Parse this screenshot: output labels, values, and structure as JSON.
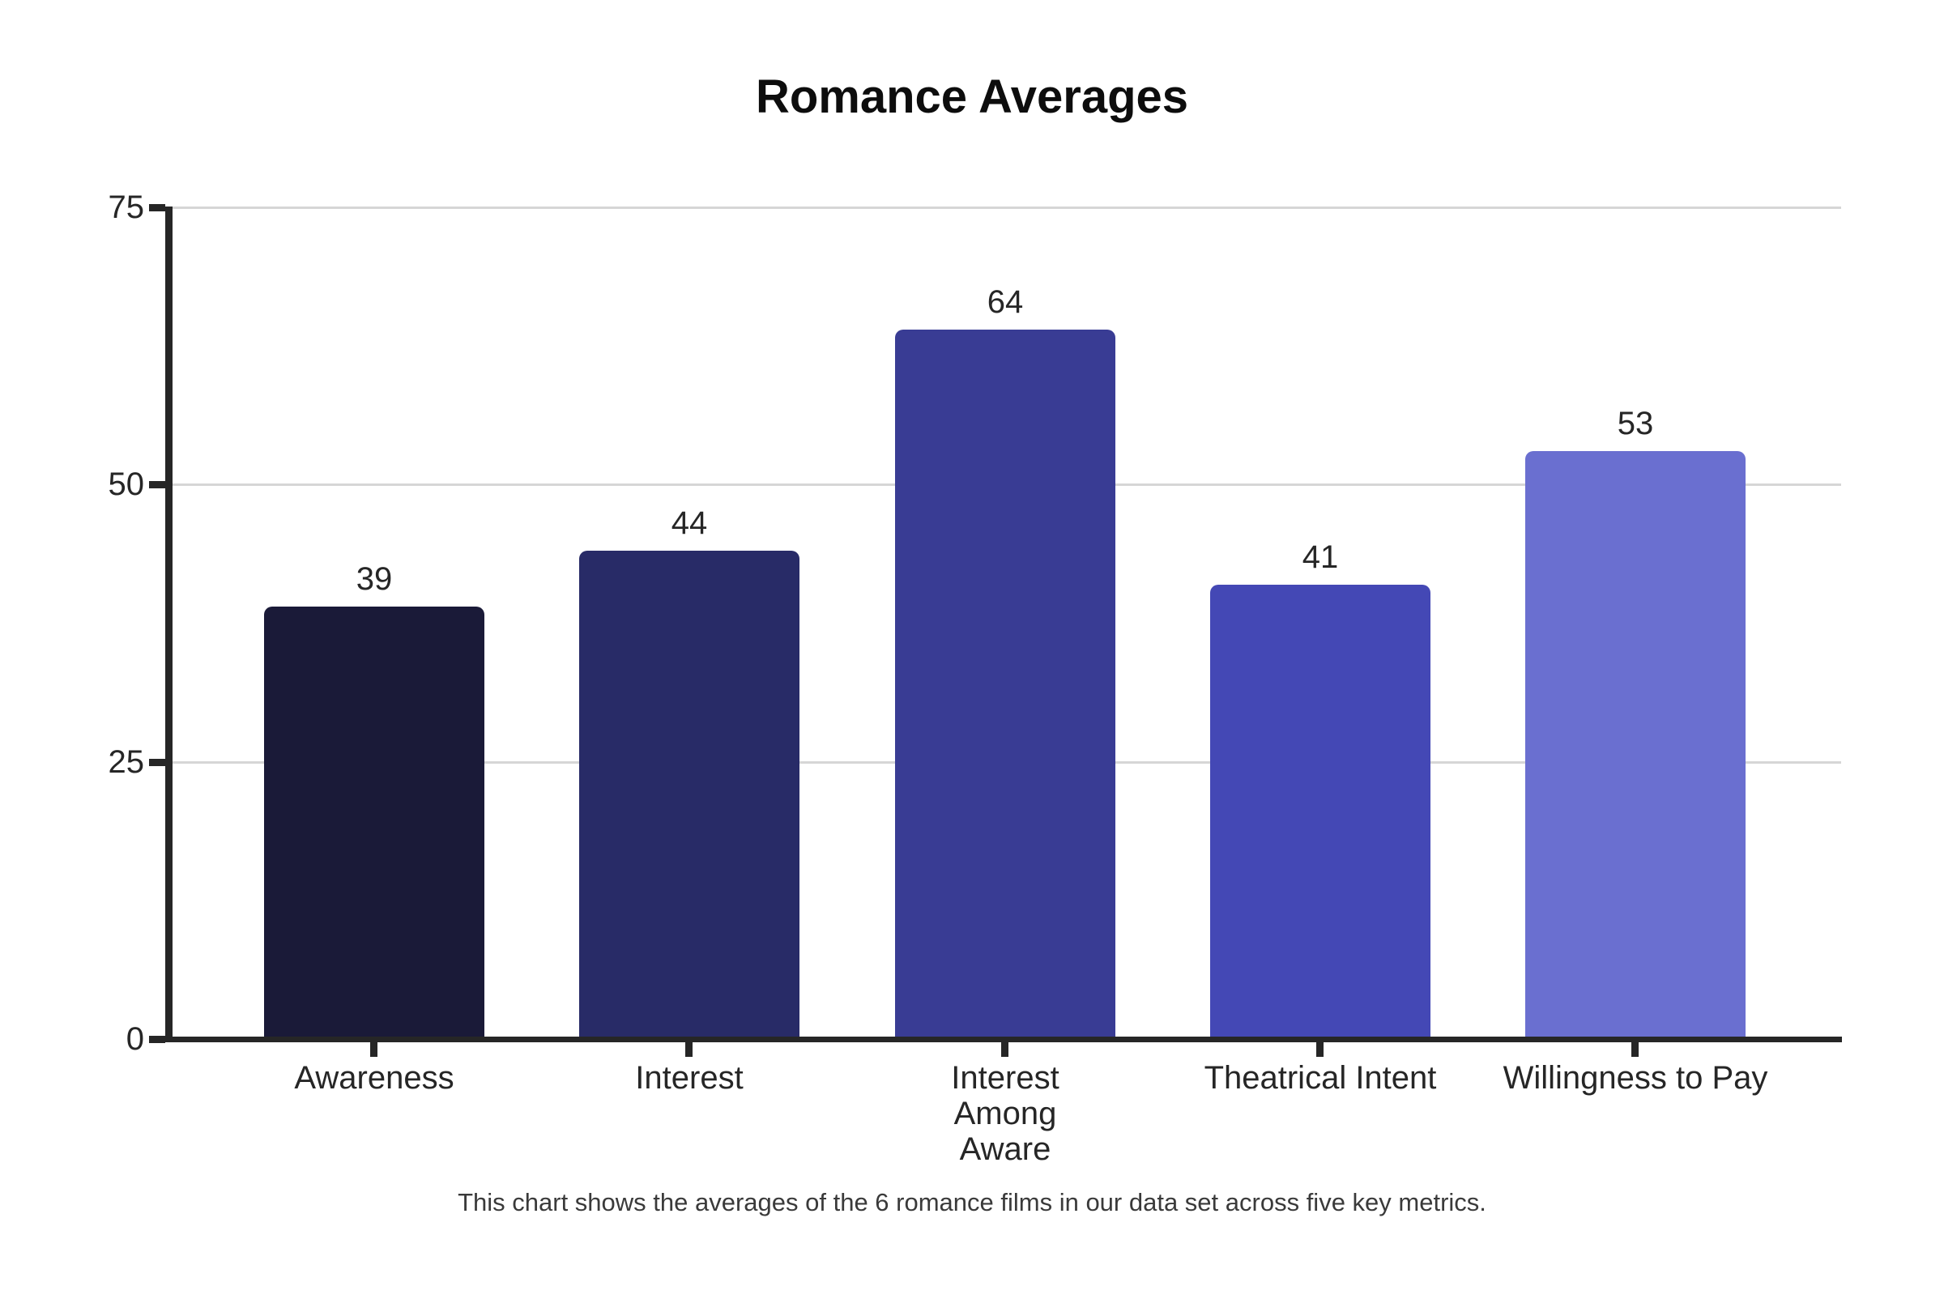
{
  "chart_data": {
    "type": "bar",
    "title": "Romance Averages",
    "categories": [
      "Awareness",
      "Interest",
      "Interest Among Aware",
      "Theatrical Intent",
      "Willingness to Pay"
    ],
    "category_lines": [
      [
        "Awareness"
      ],
      [
        "Interest"
      ],
      [
        "Interest",
        "Among",
        "Aware"
      ],
      [
        "Theatrical Intent"
      ],
      [
        "Willingness to Pay"
      ]
    ],
    "values": [
      39,
      44,
      64,
      41,
      53
    ],
    "bar_colors": [
      "#1a1a38",
      "#282b67",
      "#393c94",
      "#4448b5",
      "#6a6fd0"
    ],
    "y_ticks": [
      0,
      25,
      50,
      75
    ],
    "ylim": [
      0,
      75
    ],
    "xlabel": "",
    "ylabel": "",
    "grid": "horizontal-light",
    "legend_position": "none",
    "note": "This chart shows the averages of the 6 romance films in our data set across five key metrics.",
    "colors": {
      "axis": "#262626",
      "grid": "#d6d6d6",
      "title": "#0d0d0d",
      "label": "#262626",
      "note": "#3a3a3a",
      "background": "#ffffff"
    }
  }
}
